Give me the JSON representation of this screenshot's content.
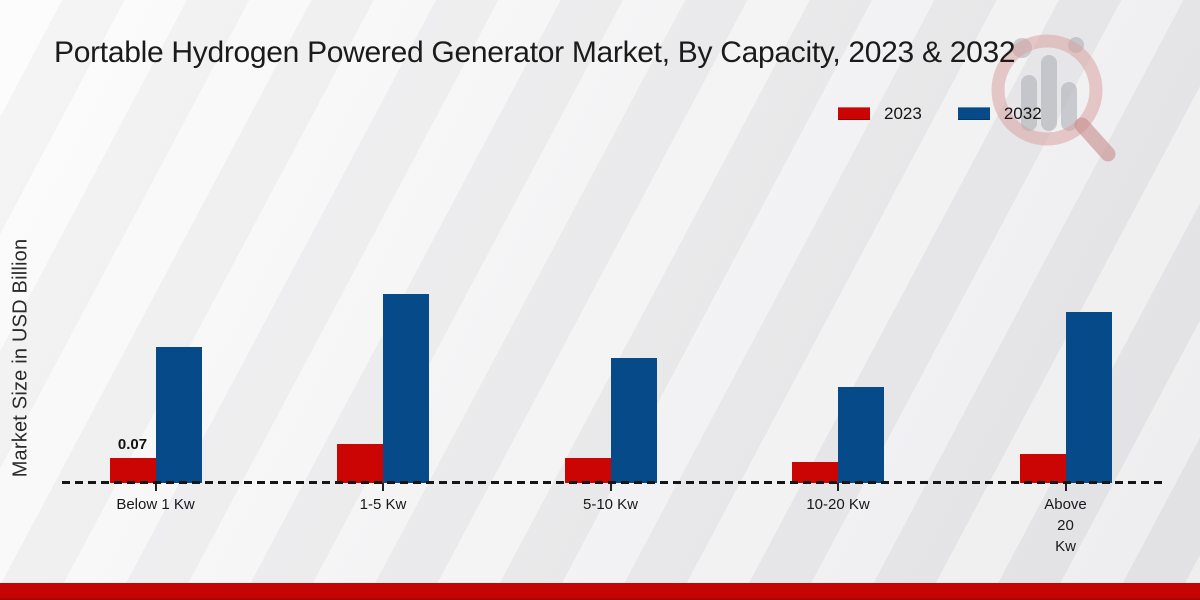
{
  "chart_data": {
    "type": "bar",
    "title": "Portable Hydrogen Powered Generator Market, By Capacity, 2023 & 2032",
    "ylabel": "Market Size in USD Billion",
    "xlabel": "",
    "categories": [
      "Below 1 Kw",
      "1-5 Kw",
      "5-10 Kw",
      "10-20 Kw",
      "Above\n20\nKw"
    ],
    "series": [
      {
        "name": "2023",
        "color": "#cb0404",
        "values": [
          0.07,
          0.11,
          0.07,
          0.06,
          0.08
        ]
      },
      {
        "name": "2032",
        "color": "#074a8a",
        "values": [
          0.38,
          0.53,
          0.35,
          0.27,
          0.48
        ]
      }
    ],
    "data_labels": [
      {
        "series": "2023",
        "category": "Below 1 Kw",
        "text": "0.07"
      }
    ],
    "legend_position": "top-right",
    "gridlines": false,
    "baseline_style": "dashed",
    "ylim": [
      0,
      0.6
    ]
  },
  "watermark_icon": "magnifier-bar-chart-logo",
  "footer_bar_color": "#c60404"
}
